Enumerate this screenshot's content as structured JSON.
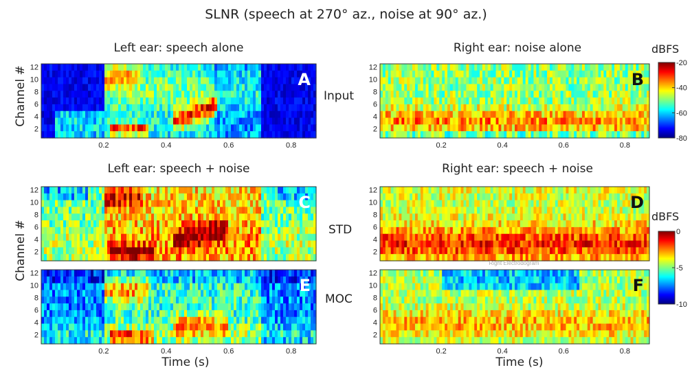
{
  "title": "SLNR (speech at 270° az., noise at 90° az.)",
  "labels": {
    "y_axis": "Channel #",
    "x_axis": "Time (s)",
    "row_input": "Input",
    "row_std": "STD",
    "row_moc": "MOC",
    "colorbar_unit": "dBFS",
    "overlay_fragment": "Right Electrodogram"
  },
  "colors": {
    "colormap": [
      "#00007f",
      "#0000ff",
      "#0080ff",
      "#00ffff",
      "#80ff80",
      "#ffff00",
      "#ff8000",
      "#ff0000",
      "#7f0000"
    ],
    "panel_letter": "#ffffff",
    "text": "#222222"
  },
  "chart_data": [
    {
      "type": "heatmap",
      "id": "A",
      "letter": "A",
      "title": "Left ear: speech alone",
      "x": {
        "label": "",
        "range": [
          0,
          0.88
        ],
        "ticks": [
          0.2,
          0.4,
          0.6,
          0.8
        ]
      },
      "y": {
        "label": "Channel #",
        "range": [
          1,
          12
        ],
        "ticks": [
          2,
          4,
          6,
          8,
          10,
          12
        ]
      },
      "colorbar": "dBFS_top",
      "speech": {
        "onset": 0.2,
        "offset": 0.7,
        "pre_onset": 0.04,
        "features": [
          {
            "t0": 0.22,
            "t1": 0.34,
            "ch": 2.8,
            "w": 0.9,
            "gain": 0.7
          },
          {
            "t0": 0.42,
            "t1": 0.56,
            "ch": 3.5,
            "w": 1.4,
            "gain": 0.55
          },
          {
            "t0": 0.2,
            "t1": 0.32,
            "ch": 10.5,
            "w": 1.6,
            "gain": 0.35
          },
          {
            "t0": 0.2,
            "t1": 0.7,
            "ch": 8,
            "w": 2.5,
            "gain": 0.3
          }
        ]
      },
      "noise": 0
    },
    {
      "type": "heatmap",
      "id": "B",
      "letter": "B",
      "title": "Right ear: noise alone",
      "x": {
        "label": "",
        "range": [
          0,
          0.88
        ],
        "ticks": [
          0.2,
          0.4,
          0.6,
          0.8
        ]
      },
      "y": {
        "label": "",
        "range": [
          1,
          12
        ],
        "ticks": [
          2,
          4,
          6,
          8,
          10,
          12
        ]
      },
      "noise": 1,
      "noise_profile": "low_channel_emphasis"
    },
    {
      "type": "heatmap",
      "id": "C",
      "letter": "C",
      "title": "Left ear: speech + noise",
      "x": {
        "label": "",
        "range": [
          0,
          0.88
        ],
        "ticks": []
      },
      "y": {
        "label": "",
        "range": [
          1,
          12
        ],
        "ticks": [
          2,
          4,
          6,
          8,
          10,
          12
        ]
      },
      "row_label": "STD",
      "speech": {
        "onset": 0.2,
        "offset": 0.7
      },
      "noise": 0.6
    },
    {
      "type": "heatmap",
      "id": "D",
      "letter": "D",
      "title": "Right ear: speech + noise",
      "x": {
        "label": "",
        "range": [
          0,
          0.88
        ],
        "ticks": []
      },
      "y": {
        "label": "",
        "range": [
          1,
          12
        ],
        "ticks": [
          2,
          4,
          6,
          8,
          10,
          12
        ]
      },
      "colorbar": "dBFS_bottom",
      "speech": {
        "onset": 0.2,
        "offset": 0.7
      },
      "noise": 1.1
    },
    {
      "type": "heatmap",
      "id": "E",
      "letter": "E",
      "title": "",
      "x": {
        "label": "Time (s)",
        "range": [
          0,
          0.88
        ],
        "ticks": [
          0.2,
          0.4,
          0.6,
          0.8
        ]
      },
      "y": {
        "label": "",
        "range": [
          1,
          12
        ],
        "ticks": [
          2,
          4,
          6,
          8,
          10,
          12
        ]
      },
      "row_label": "MOC",
      "speech": {
        "onset": 0.2,
        "offset": 0.7
      },
      "noise": 0.35
    },
    {
      "type": "heatmap",
      "id": "F",
      "letter": "F",
      "title": "",
      "x": {
        "label": "Time (s)",
        "range": [
          0,
          0.88
        ],
        "ticks": [
          0.2,
          0.4,
          0.6,
          0.8
        ]
      },
      "y": {
        "label": "",
        "range": [
          1,
          12
        ],
        "ticks": [
          2,
          4,
          6,
          8,
          10,
          12
        ]
      },
      "speech": {
        "onset": 0.2,
        "offset": 0.7
      },
      "noise": 0.85
    },
    {
      "type": "colorbar",
      "id": "cb1",
      "unit": "dBFS",
      "range": [
        -80,
        -20
      ],
      "ticks": [
        -20,
        -40,
        -60,
        -80
      ]
    },
    {
      "type": "colorbar",
      "id": "cb2",
      "unit": "dBFS",
      "range": [
        -10,
        0
      ],
      "ticks": [
        0,
        -5,
        -10
      ]
    }
  ]
}
